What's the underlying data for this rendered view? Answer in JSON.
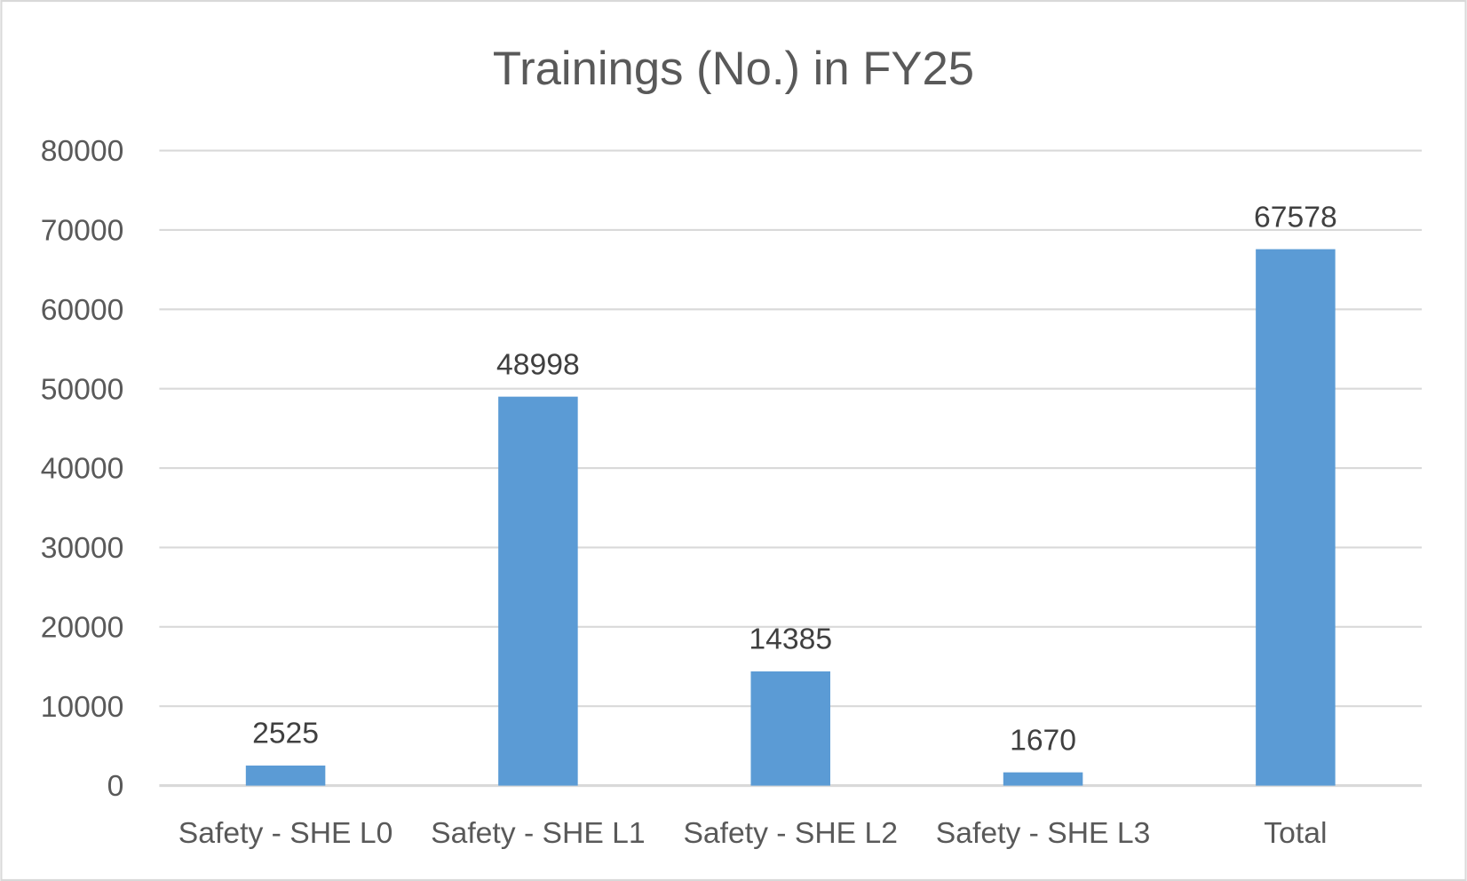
{
  "chart_data": {
    "type": "bar",
    "title": "Trainings (No.) in FY25",
    "xlabel": "",
    "ylabel": "",
    "categories": [
      "Safety - SHE L0",
      "Safety - SHE L1",
      "Safety - SHE L2",
      "Safety - SHE L3",
      "Total"
    ],
    "values": [
      2525,
      48998,
      14385,
      1670,
      67578
    ],
    "ylim": [
      0,
      80000
    ],
    "yticks": [
      0,
      10000,
      20000,
      30000,
      40000,
      50000,
      60000,
      70000,
      80000
    ],
    "grid": true,
    "legend": "none",
    "bar_color": "#5B9BD5"
  }
}
